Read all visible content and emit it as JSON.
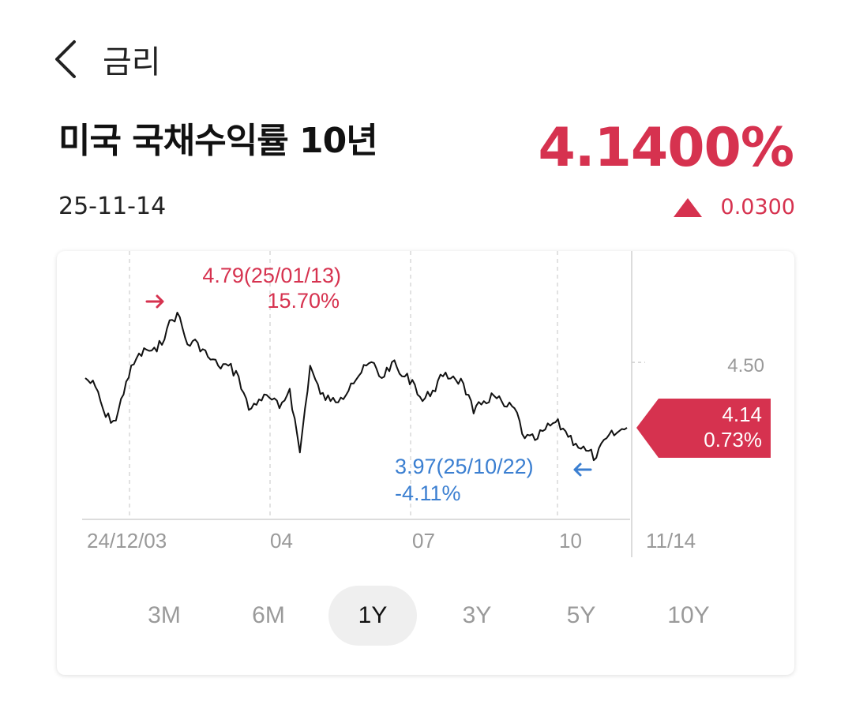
{
  "header": {
    "title": "금리"
  },
  "instrument": {
    "name": "미국 국채수익률 10년",
    "date": "25-11-14",
    "value": "4.1400%",
    "change": "0.0300"
  },
  "colors": {
    "up": "#d6324f",
    "down": "#3b7fd1",
    "line": "#111111"
  },
  "chart_data": {
    "type": "line",
    "x_tick_labels": [
      "24/12/03",
      "04",
      "07",
      "10",
      "11/14"
    ],
    "y_tick_labels": [
      "4.50"
    ],
    "annotations": {
      "high": {
        "line1": "4.79(25/01/13)",
        "line2": "15.70%"
      },
      "low": {
        "line1": "3.97(25/10/22)",
        "line2": "-4.11%"
      },
      "current": {
        "line1": "4.14",
        "line2": "0.73%"
      }
    },
    "series": [
      {
        "x": [
          "24/11/15",
          "24/11/22",
          "24/11/29",
          "24/12/06",
          "24/12/13",
          "24/12/20",
          "24/12/27",
          "25/01/03",
          "25/01/10",
          "25/01/13",
          "25/01/17",
          "25/01/24",
          "25/01/31",
          "25/02/07",
          "25/02/14",
          "25/02/21",
          "25/02/28",
          "25/03/07",
          "25/03/14",
          "25/03/21",
          "25/03/28",
          "25/04/04",
          "25/04/11",
          "25/04/18",
          "25/04/25",
          "25/05/02",
          "25/05/09",
          "25/05/16",
          "25/05/23",
          "25/05/30",
          "25/06/06",
          "25/06/13",
          "25/06/20",
          "25/06/27",
          "25/07/04",
          "25/07/11",
          "25/07/18",
          "25/07/25",
          "25/08/01",
          "25/08/08",
          "25/08/15",
          "25/08/22",
          "25/08/29",
          "25/09/05",
          "25/09/12",
          "25/09/19",
          "25/09/26",
          "25/10/03",
          "25/10/10",
          "25/10/17",
          "25/10/22",
          "25/10/31",
          "25/11/07",
          "25/11/14"
        ],
        "values": [
          4.42,
          4.37,
          4.2,
          4.18,
          4.4,
          4.53,
          4.58,
          4.57,
          4.7,
          4.79,
          4.61,
          4.62,
          4.54,
          4.49,
          4.49,
          4.43,
          4.24,
          4.3,
          4.31,
          4.25,
          4.36,
          4.0,
          4.49,
          4.33,
          4.29,
          4.31,
          4.39,
          4.45,
          4.51,
          4.42,
          4.51,
          4.43,
          4.41,
          4.29,
          4.35,
          4.43,
          4.43,
          4.39,
          4.22,
          4.29,
          4.32,
          4.26,
          4.25,
          4.08,
          4.07,
          4.13,
          4.17,
          4.12,
          4.05,
          4.01,
          3.97,
          4.08,
          4.11,
          4.14
        ]
      }
    ]
  },
  "periods": [
    {
      "label": "3M"
    },
    {
      "label": "6M"
    },
    {
      "label": "1Y"
    },
    {
      "label": "3Y"
    },
    {
      "label": "5Y"
    },
    {
      "label": "10Y"
    }
  ]
}
